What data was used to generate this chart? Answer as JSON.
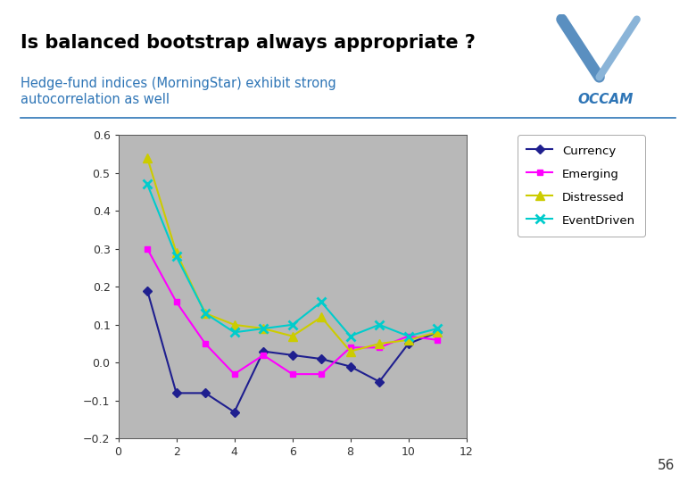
{
  "title": "Is balanced bootstrap always appropriate ?",
  "subtitle": "Hedge-fund indices (MorningStar) exhibit strong\nautocorrelation as well",
  "title_color": "#000000",
  "subtitle_color": "#2e75b6",
  "background_color": "#ffffff",
  "plot_bg_color": "#b8b8b8",
  "x_values": [
    0,
    1,
    2,
    3,
    4,
    5,
    6,
    7,
    8,
    9,
    10,
    11
  ],
  "currency": [
    null,
    0.19,
    -0.08,
    -0.08,
    -0.13,
    0.03,
    0.02,
    0.01,
    -0.01,
    -0.05,
    0.05,
    0.08
  ],
  "emerging": [
    null,
    0.3,
    0.16,
    0.05,
    -0.03,
    0.02,
    -0.03,
    -0.03,
    0.04,
    0.04,
    0.07,
    0.06
  ],
  "distressed": [
    null,
    0.54,
    0.29,
    0.13,
    0.1,
    0.09,
    0.07,
    0.12,
    0.03,
    0.05,
    0.06,
    0.08
  ],
  "eventdriven": [
    null,
    0.47,
    0.28,
    0.13,
    0.08,
    0.09,
    0.1,
    0.16,
    0.07,
    0.1,
    0.07,
    0.09
  ],
  "currency_color": "#1f1f8f",
  "emerging_color": "#ff00ff",
  "distressed_color": "#cccc00",
  "eventdriven_color": "#00cccc",
  "xlim": [
    0,
    12
  ],
  "ylim": [
    -0.2,
    0.6
  ],
  "yticks": [
    -0.2,
    -0.1,
    0,
    0.1,
    0.2,
    0.3,
    0.4,
    0.5,
    0.6
  ],
  "xticks": [
    0,
    2,
    4,
    6,
    8,
    10,
    12
  ],
  "legend_labels": [
    "Currency",
    "Emerging",
    "Distressed",
    "EventDriven"
  ],
  "page_number": "56",
  "line_width": 1.5,
  "separator_color": "#2e75b6"
}
